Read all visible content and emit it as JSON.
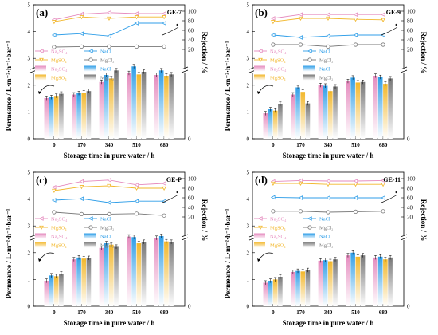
{
  "colors": {
    "Na2SO4": "#e58bbe",
    "NaCl": "#2f9ee8",
    "MgSO4": "#f2b72b",
    "MgCl2": "#777777"
  },
  "chart_data": [
    {
      "type": "bar",
      "panel_label": "(a)",
      "panel_code": "GE-7",
      "xlabel": "Storage time in pure water / h",
      "ylabel": "Permeance / L·m⁻²·h⁻¹·bar⁻¹",
      "y2label": "Rejection / %",
      "categories": [
        "0",
        "170",
        "340",
        "510",
        "680"
      ],
      "ylim": [
        0,
        5
      ],
      "y2ticks": [
        "20",
        "40",
        "60",
        "80",
        "100"
      ],
      "legend": {
        "line_labels": [
          "Na₂SO₄",
          "NaCl",
          "MgSO₄",
          "MgCl₂"
        ],
        "bar_labels": [
          "Na₂SO₄",
          "NaCl",
          "MgSO₄",
          "MgCl₂"
        ]
      },
      "permeance": {
        "Na2SO4": [
          1.52,
          1.65,
          2.12,
          2.45,
          2.38
        ],
        "NaCl": [
          1.55,
          1.7,
          2.38,
          2.7,
          2.55
        ],
        "MgSO4": [
          1.6,
          1.72,
          2.25,
          2.4,
          2.35
        ],
        "MgCl2": [
          1.68,
          1.78,
          2.55,
          2.5,
          2.4
        ]
      },
      "rejection": {
        "Na2SO4": [
          82,
          94,
          97,
          95,
          95
        ],
        "NaCl": [
          50,
          53,
          48,
          75,
          75
        ],
        "MgSO4": [
          78,
          88,
          85,
          88,
          88
        ],
        "MgCl2": [
          25,
          26,
          26,
          26,
          26
        ]
      }
    },
    {
      "type": "bar",
      "panel_label": "(b)",
      "panel_code": "GE-9",
      "xlabel": "Storage time in pure water / h",
      "ylabel": "Permeance / L·m⁻²·h⁻¹·bar⁻¹",
      "y2label": "Rejection / %",
      "categories": [
        "0",
        "170",
        "340",
        "510",
        "680"
      ],
      "ylim": [
        0,
        5
      ],
      "y2ticks": [
        "20",
        "40",
        "60",
        "80",
        "100"
      ],
      "legend": {
        "line_labels": [
          "Na₂SO₄",
          "NaCl",
          "MgSO₄",
          "MgCl₂"
        ],
        "bar_labels": [
          "Na₂SO₄",
          "NaCl",
          "MgSO₄",
          "MgCl₂"
        ]
      },
      "permeance": {
        "Na2SO4": [
          0.95,
          1.65,
          2.0,
          2.15,
          2.35
        ],
        "NaCl": [
          1.1,
          1.92,
          1.98,
          2.28,
          2.3
        ],
        "MgSO4": [
          1.05,
          1.75,
          1.78,
          2.1,
          2.05
        ],
        "MgCl2": [
          1.3,
          1.32,
          1.95,
          2.12,
          2.25
        ]
      },
      "rejection": {
        "Na2SO4": [
          85,
          93,
          93,
          93,
          93
        ],
        "NaCl": [
          50,
          45,
          48,
          50,
          50
        ],
        "MgSO4": [
          78,
          85,
          85,
          83,
          82
        ],
        "MgCl2": [
          30,
          30,
          26,
          30,
          30
        ]
      }
    },
    {
      "type": "bar",
      "panel_label": "(c)",
      "panel_code": "GE-P",
      "xlabel": "Storage time in pure water / h",
      "ylabel": "Permeance / L·m⁻²·h⁻¹·bar⁻¹",
      "y2label": "Rejection / %",
      "categories": [
        "0",
        "170",
        "340",
        "510",
        "680"
      ],
      "ylim": [
        0,
        5
      ],
      "y2ticks": [
        "20",
        "40",
        "60",
        "80",
        "100"
      ],
      "legend": {
        "line_labels": [
          "Na₂SO₄",
          "NaCl",
          "MgSO₄",
          "MgCl₂"
        ],
        "bar_labels": [
          "Na₂SO₄",
          "NaCl",
          "MgSO₄",
          "MgCl₂"
        ]
      },
      "permeance": {
        "Na2SO4": [
          0.95,
          1.75,
          2.18,
          2.6,
          2.55
        ],
        "NaCl": [
          1.15,
          1.82,
          2.35,
          2.58,
          2.62
        ],
        "MgSO4": [
          1.12,
          1.78,
          2.3,
          2.35,
          2.42
        ],
        "MgCl2": [
          1.22,
          1.8,
          2.22,
          2.4,
          2.4
        ]
      },
      "rejection": {
        "Na2SO4": [
          82,
          94,
          97,
          87,
          90
        ],
        "NaCl": [
          55,
          58,
          50,
          53,
          53
        ],
        "MgSO4": [
          75,
          83,
          85,
          80,
          80
        ],
        "MgCl2": [
          30,
          26,
          26,
          27,
          23
        ]
      }
    },
    {
      "type": "bar",
      "panel_label": "(d)",
      "panel_code": "GE-11",
      "xlabel": "Storage time in pure water / h",
      "ylabel": "Permeance / L·m⁻²·h⁻¹·bar⁻¹",
      "y2label": "Rejection / %",
      "categories": [
        "0",
        "170",
        "340",
        "510",
        "680"
      ],
      "ylim": [
        0,
        5
      ],
      "y2ticks": [
        "20",
        "40",
        "60",
        "80",
        "100"
      ],
      "legend": {
        "line_labels": [
          "Na₂SO₄",
          "NaCl",
          "MgSO₄",
          "MgCl₂"
        ],
        "bar_labels": [
          "Na₂SO₄",
          "NaCl",
          "MgSO₄",
          "MgCl₂"
        ]
      },
      "permeance": {
        "Na2SO4": [
          0.88,
          1.28,
          1.7,
          1.9,
          1.82
        ],
        "NaCl": [
          0.95,
          1.32,
          1.72,
          2.0,
          1.85
        ],
        "MgSO4": [
          1.0,
          1.3,
          1.68,
          1.85,
          1.75
        ],
        "MgCl2": [
          1.1,
          1.35,
          1.75,
          1.9,
          1.82
        ]
      },
      "rejection": {
        "Na2SO4": [
          94,
          96,
          95,
          95,
          96
        ],
        "NaCl": [
          61,
          60,
          60,
          60,
          60
        ],
        "MgSO4": [
          90,
          90,
          88,
          88,
          88
        ],
        "MgCl2": [
          32,
          32,
          30,
          31,
          32
        ]
      }
    }
  ]
}
